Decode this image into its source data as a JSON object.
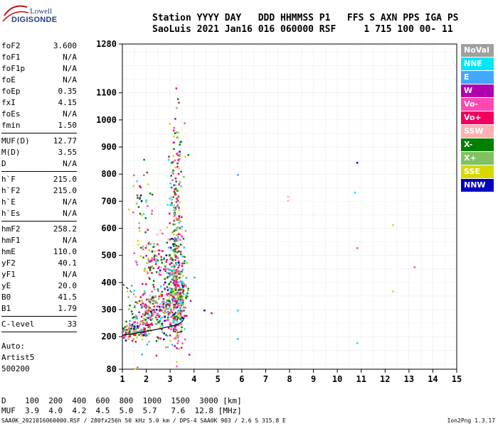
{
  "logo": {
    "line1": "Lowell",
    "line2": "DIGISONDE"
  },
  "header": {
    "line1": "Station YYYY DAY   DDD HHMMSS P1   FFS S AXN PPS IGA PS",
    "line2": "SaoLuis 2021 Jan16 016 060000 RSF     1 715 100 00- 11"
  },
  "params": [
    {
      "k": "foF2",
      "v": "3.600"
    },
    {
      "k": "foF1",
      "v": "N/A"
    },
    {
      "k": "foF1p",
      "v": "N/A"
    },
    {
      "k": "foE",
      "v": "N/A"
    },
    {
      "k": "foEp",
      "v": "0.35"
    },
    {
      "k": "fxI",
      "v": "4.15"
    },
    {
      "k": "foEs",
      "v": "N/A"
    },
    {
      "k": "fmin",
      "v": "1.50"
    },
    {
      "k": "MUF(D)",
      "v": "12.77"
    },
    {
      "k": "M(D)",
      "v": "3.55"
    },
    {
      "k": "D",
      "v": "N/A"
    },
    {
      "k": "h`F",
      "v": "215.0"
    },
    {
      "k": "h`F2",
      "v": "215.0"
    },
    {
      "k": "h`E",
      "v": "N/A"
    },
    {
      "k": "h`Es",
      "v": "N/A"
    },
    {
      "k": "hmF2",
      "v": "258.2"
    },
    {
      "k": "hmF1",
      "v": "N/A"
    },
    {
      "k": "hmE",
      "v": "110.0"
    },
    {
      "k": "yF2",
      "v": "40.1"
    },
    {
      "k": "yF1",
      "v": "N/A"
    },
    {
      "k": "yE",
      "v": "20.0"
    },
    {
      "k": "B0",
      "v": "41.5"
    },
    {
      "k": "B1",
      "v": "1.79"
    },
    {
      "k": "C-level",
      "v": "33"
    }
  ],
  "auto": {
    "line1": "Auto:",
    "line2": "Artist5",
    "line3": "500200"
  },
  "legend": [
    {
      "label": "NoVal",
      "color": "#a0a0a0"
    },
    {
      "label": "NNE",
      "color": "#00e8f8"
    },
    {
      "label": "E",
      "color": "#40a8ff"
    },
    {
      "label": "W",
      "color": "#b000b0"
    },
    {
      "label": "Vo-",
      "color": "#ff48b0"
    },
    {
      "label": "Vo+",
      "color": "#f00060"
    },
    {
      "label": "SSW",
      "color": "#ffb0b0"
    },
    {
      "label": "X-",
      "color": "#008000"
    },
    {
      "label": "X+",
      "color": "#80c060"
    },
    {
      "label": "SSE",
      "color": "#d8d800"
    },
    {
      "label": "NNW",
      "color": "#0000c0"
    }
  ],
  "bottom": {
    "line1": "D    100  200  400  600  800  1000  1500  3000 [km]",
    "line2": "MUF  3.9  4.0  4.2  4.5  5.0  5.7   7.6  12.8 [MHz]"
  },
  "footer": "SAA0K_2021016060000.RSF / 280fx256h 50 kHz 5.0 km / DPS-4 SAA0K 903 / 2.6 S 315.8 E",
  "version": "Ion2Png 1.3.17",
  "chart_data": {
    "type": "scatter",
    "xlim": [
      1,
      15
    ],
    "ylim": [
      80,
      1280
    ],
    "xticks": [
      1,
      2,
      3,
      4,
      5,
      6,
      7,
      8,
      9,
      10,
      11,
      12,
      13,
      14,
      15
    ],
    "yticks": [
      80,
      200,
      300,
      400,
      500,
      600,
      700,
      800,
      900,
      1000,
      1100,
      1280
    ],
    "grid": true,
    "trace": {
      "x": [
        1.0,
        1.5,
        2.0,
        2.5,
        3.0,
        3.3,
        3.5,
        3.6
      ],
      "y": [
        205,
        212,
        220,
        228,
        238,
        245,
        255,
        270
      ]
    },
    "trace_dashed": {
      "x": [
        1.0,
        1.2,
        1.5
      ],
      "y": [
        395,
        380,
        355
      ]
    },
    "clusters": [
      {
        "cx": 1.4,
        "cy": 225,
        "sx": 0.35,
        "sy": 18,
        "n": 140
      },
      {
        "cx": 2.2,
        "cy": 290,
        "sx": 0.4,
        "sy": 45,
        "n": 220
      },
      {
        "cx": 3.2,
        "cy": 350,
        "sx": 0.25,
        "sy": 90,
        "n": 380
      },
      {
        "cx": 3.2,
        "cy": 650,
        "sx": 0.15,
        "sy": 180,
        "n": 220
      },
      {
        "cx": 2.3,
        "cy": 480,
        "sx": 0.3,
        "sy": 40,
        "n": 80
      },
      {
        "cx": 1.8,
        "cy": 650,
        "sx": 0.25,
        "sy": 80,
        "n": 40
      }
    ],
    "outliers": [
      {
        "x": 5.8,
        "y": 800,
        "c": "#40a8ff"
      },
      {
        "x": 5.8,
        "y": 300,
        "c": "#00e8f8"
      },
      {
        "x": 5.8,
        "y": 195,
        "c": "#40a8ff"
      },
      {
        "x": 7.9,
        "y": 720,
        "c": "#ffb0b0"
      },
      {
        "x": 7.9,
        "y": 705,
        "c": "#ffb0b0"
      },
      {
        "x": 10.8,
        "y": 845,
        "c": "#0000c0"
      },
      {
        "x": 10.7,
        "y": 735,
        "c": "#00e8f8"
      },
      {
        "x": 10.8,
        "y": 530,
        "c": "#ff48b0"
      },
      {
        "x": 10.8,
        "y": 180,
        "c": "#00e8f8"
      },
      {
        "x": 12.3,
        "y": 615,
        "c": "#d8d800"
      },
      {
        "x": 12.3,
        "y": 370,
        "c": "#d8d800"
      },
      {
        "x": 13.2,
        "y": 460,
        "c": "#ff48b0"
      },
      {
        "x": 4.4,
        "y": 300,
        "c": "#0000c0"
      },
      {
        "x": 4.7,
        "y": 290,
        "c": "#b000b0"
      },
      {
        "x": 1.6,
        "y": 90,
        "c": "#ff48b0"
      },
      {
        "x": 1.5,
        "y": 85,
        "c": "#d8d800"
      }
    ]
  }
}
